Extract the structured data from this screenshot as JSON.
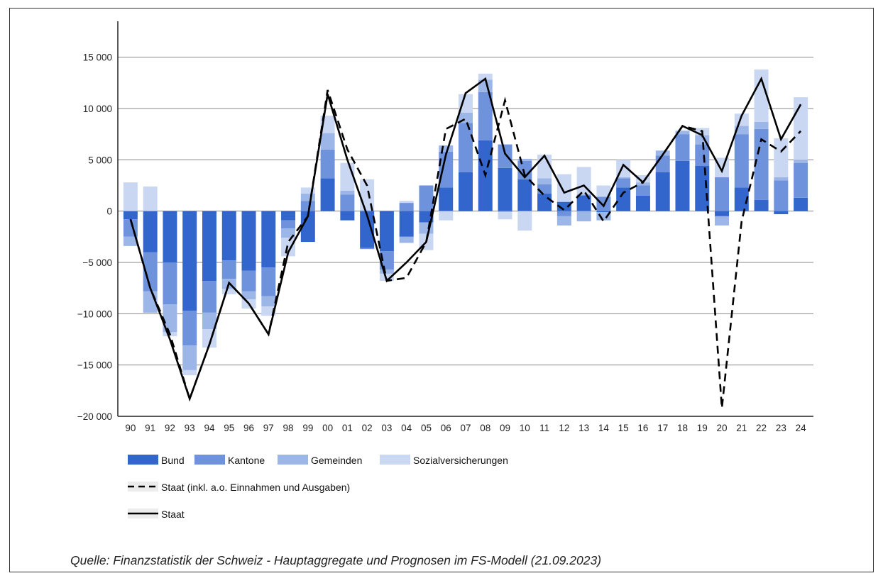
{
  "source": "Quelle: Finanzstatistik der Schweiz - Hauptaggregate und Prognosen im FS-Modell (21.09.2023)",
  "colors": {
    "Bund": "#3366cc",
    "Kantone": "#6f92dd",
    "Gemeinden": "#9db6e8",
    "Sozialversicherungen": "#c9d7f3",
    "staat": "#000000",
    "staat_ao": "#000000",
    "grid": "#888888"
  },
  "chart_data": {
    "type": "bar",
    "stacked": true,
    "categories": [
      "90",
      "91",
      "92",
      "93",
      "94",
      "95",
      "96",
      "97",
      "98",
      "99",
      "00",
      "01",
      "02",
      "03",
      "04",
      "05",
      "06",
      "07",
      "08",
      "09",
      "10",
      "11",
      "12",
      "13",
      "14",
      "15",
      "16",
      "17",
      "18",
      "19",
      "20",
      "21",
      "22",
      "23",
      "24"
    ],
    "y_ticks": [
      15000,
      10000,
      5000,
      0,
      -5000,
      -10000,
      -15000,
      -20000
    ],
    "y_tick_labels": [
      "15 000",
      "10 000",
      "5 000",
      "0",
      "−5 000",
      "−10 000",
      "−15 000",
      "−20 000"
    ],
    "ylim": [
      -20000,
      18500
    ],
    "grid": true,
    "series": [
      {
        "name": "Bund",
        "color_key": "Bund",
        "values": [
          -800,
          -4000,
          -5000,
          -9700,
          -6800,
          -4800,
          -5800,
          -5500,
          -900,
          -3000,
          3200,
          -900,
          -3600,
          -3900,
          -2500,
          -1100,
          2300,
          3800,
          6900,
          4200,
          3100,
          1700,
          900,
          1500,
          -100,
          2300,
          1500,
          3800,
          4900,
          4400,
          -500,
          2300,
          1100,
          -300,
          1300
        ]
      },
      {
        "name": "Kantone",
        "color_key": "Kantone",
        "values": [
          -1700,
          -3800,
          -4100,
          -3400,
          -3100,
          -1800,
          -2000,
          -2800,
          -800,
          1000,
          2800,
          1600,
          -100,
          -1800,
          800,
          2500,
          3500,
          4800,
          4700,
          2300,
          1800,
          900,
          -500,
          100,
          1400,
          900,
          1000,
          1600,
          2600,
          2100,
          3300,
          5200,
          6900,
          3000,
          3400
        ]
      },
      {
        "name": "Gemeinden",
        "color_key": "Gemeinden",
        "values": [
          -900,
          -2100,
          -2700,
          -2400,
          -1600,
          -1000,
          -800,
          -1000,
          -900,
          700,
          1600,
          400,
          100,
          -400,
          -600,
          -1100,
          600,
          1000,
          1200,
          -100,
          200,
          600,
          -900,
          -1000,
          -800,
          100,
          300,
          500,
          300,
          900,
          -900,
          800,
          700,
          300,
          300
        ]
      },
      {
        "name": "Sozialversicherungen",
        "color_key": "Sozialversicherungen",
        "values": [
          2800,
          2400,
          -400,
          -500,
          -1800,
          -500,
          -900,
          -900,
          -1800,
          600,
          1700,
          2700,
          3000,
          -700,
          200,
          -1600,
          -900,
          1800,
          600,
          -700,
          -1900,
          2300,
          2700,
          2700,
          1100,
          1700,
          700,
          0,
          100,
          700,
          1900,
          1200,
          5100,
          3800,
          6100
        ]
      }
    ],
    "lines": [
      {
        "name": "Staat (inkl. a.o. Einnahmen und Ausgaben)",
        "style": "dashed",
        "values": [
          -800,
          -7500,
          -12000,
          -18300,
          -13000,
          -7000,
          -9000,
          -12000,
          -3000,
          -500,
          11800,
          6000,
          2500,
          -6800,
          -6500,
          -3000,
          8000,
          9000,
          3500,
          10800,
          3500,
          1500,
          100,
          2000,
          -1000,
          1800,
          2800,
          5500,
          8300,
          7800,
          -19200,
          -1000,
          7000,
          5800,
          7800
        ]
      },
      {
        "name": "Staat",
        "style": "solid",
        "values": [
          -800,
          -7500,
          -12500,
          -18300,
          -13000,
          -7000,
          -9000,
          -12000,
          -4000,
          -500,
          11400,
          5000,
          -400,
          -6800,
          -5000,
          -3000,
          5500,
          11500,
          12900,
          5600,
          3300,
          5400,
          1800,
          2500,
          500,
          4500,
          2800,
          5500,
          8300,
          7400,
          3900,
          9300,
          12900,
          7000,
          10400
        ]
      }
    ]
  },
  "legend": {
    "Bund": "Bund",
    "Kantone": "Kantone",
    "Gemeinden": "Gemeinden",
    "Sozialversicherungen": "Sozialversicherungen",
    "staat_ao": "Staat (inkl. a.o. Einnahmen und Ausgaben)",
    "staat": "Staat"
  }
}
